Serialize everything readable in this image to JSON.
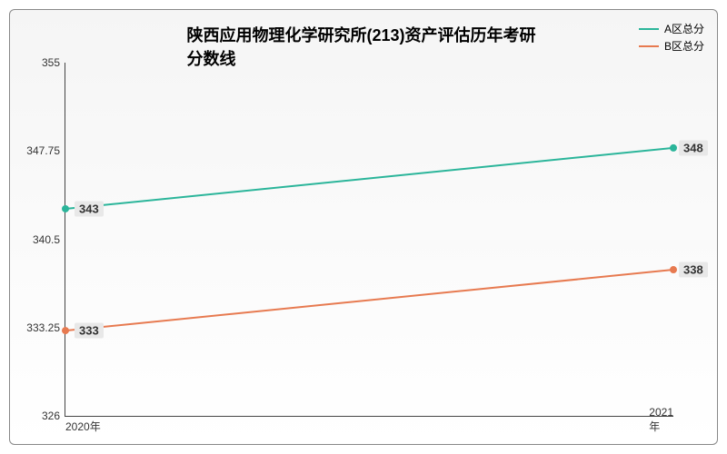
{
  "chart": {
    "type": "line",
    "title": "陕西应用物理化学研究所(213)资产评估历年考研分数线",
    "title_fontsize": 18,
    "title_fontweight": "bold",
    "background_gradient_top": "#f5f5f5",
    "background_gradient_bottom": "#ffffff",
    "border_color": "#888888",
    "axis_color": "#444444",
    "xaxis": {
      "categories": [
        "2020年",
        "2021年"
      ],
      "fontsize": 12
    },
    "yaxis": {
      "ylim": [
        326,
        355
      ],
      "ticks": [
        326,
        333.25,
        340.5,
        347.75,
        355
      ],
      "tick_labels": [
        "326",
        "333.25",
        "340.5",
        "347.75",
        "355"
      ],
      "fontsize": 12
    },
    "series": [
      {
        "name": "A区总分",
        "color": "#2bb59a",
        "line_width": 2,
        "marker": "circle",
        "marker_size": 4,
        "values": [
          343,
          348
        ],
        "labels": [
          "343",
          "348"
        ]
      },
      {
        "name": "B区总分",
        "color": "#e77a50",
        "line_width": 2,
        "marker": "circle",
        "marker_size": 4,
        "values": [
          333,
          338
        ],
        "labels": [
          "333",
          "338"
        ]
      }
    ],
    "legend": {
      "position": "top-right",
      "fontsize": 12
    },
    "data_label_style": {
      "background": "#e8e8e8",
      "fontsize": 13,
      "fontweight": "bold",
      "color": "#333333"
    }
  }
}
